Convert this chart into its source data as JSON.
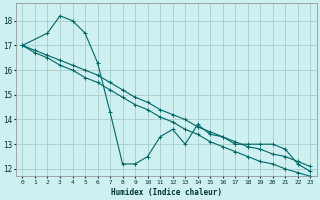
{
  "title": "",
  "xlabel": "Humidex (Indice chaleur)",
  "bg_color": "#cef0f0",
  "grid_color": "#aacccc",
  "line_color": "#006666",
  "xlim": [
    -0.5,
    23.5
  ],
  "ylim": [
    11.7,
    18.7
  ],
  "yticks": [
    12,
    13,
    14,
    15,
    16,
    17,
    18
  ],
  "xticks": [
    0,
    1,
    2,
    3,
    4,
    5,
    6,
    7,
    8,
    9,
    10,
    11,
    12,
    13,
    14,
    15,
    16,
    17,
    18,
    19,
    20,
    21,
    22,
    23
  ],
  "series": [
    {
      "x": [
        0,
        2,
        3,
        4,
        5,
        6,
        7,
        8,
        9,
        10,
        11,
        12,
        13,
        14,
        15,
        16,
        17,
        18,
        19,
        20,
        21,
        22,
        23
      ],
      "y": [
        17.0,
        17.5,
        18.2,
        18.0,
        17.5,
        16.3,
        14.3,
        12.2,
        12.2,
        12.5,
        13.3,
        13.6,
        13.0,
        13.8,
        13.4,
        13.3,
        13.0,
        13.0,
        13.0,
        13.0,
        12.8,
        12.2,
        11.9
      ]
    },
    {
      "x": [
        0,
        1,
        2,
        3,
        4,
        5,
        6,
        7,
        8,
        9,
        10,
        11,
        12,
        13,
        14,
        15,
        16,
        17,
        18,
        19,
        20,
        21,
        22,
        23
      ],
      "y": [
        17.0,
        16.8,
        16.6,
        16.4,
        16.2,
        16.0,
        15.8,
        15.5,
        15.2,
        14.9,
        14.7,
        14.4,
        14.2,
        14.0,
        13.7,
        13.5,
        13.3,
        13.1,
        12.9,
        12.8,
        12.6,
        12.5,
        12.3,
        12.1
      ]
    },
    {
      "x": [
        0,
        1,
        2,
        3,
        4,
        5,
        6,
        7,
        8,
        9,
        10,
        11,
        12,
        13,
        14,
        15,
        16,
        17,
        18,
        19,
        20,
        21,
        22,
        23
      ],
      "y": [
        17.0,
        16.7,
        16.5,
        16.2,
        16.0,
        15.7,
        15.5,
        15.2,
        14.9,
        14.6,
        14.4,
        14.1,
        13.9,
        13.6,
        13.4,
        13.1,
        12.9,
        12.7,
        12.5,
        12.3,
        12.2,
        12.0,
        11.85,
        11.7
      ]
    }
  ]
}
